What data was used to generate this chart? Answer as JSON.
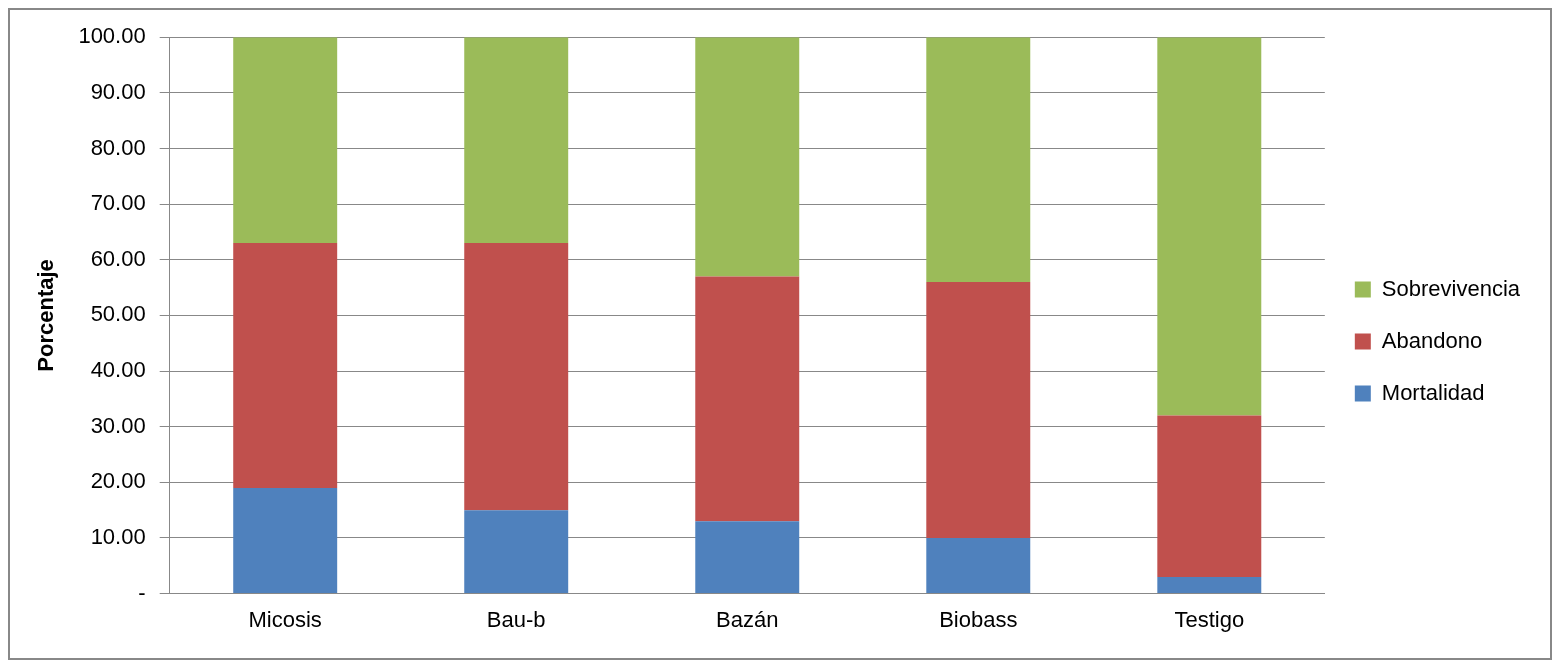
{
  "chart_data": {
    "type": "bar",
    "stacked": true,
    "ylabel": "Porcentaje",
    "categories": [
      "Micosis",
      "Bau-b",
      "Bazán",
      "Biobass",
      "Testigo"
    ],
    "series": [
      {
        "name": "Mortalidad",
        "color": "#4f81bd",
        "values": [
          19,
          15,
          13,
          10,
          3
        ]
      },
      {
        "name": "Abandono",
        "color": "#c0504d",
        "values": [
          44,
          48,
          44,
          46,
          29
        ]
      },
      {
        "name": "Sobrevivencia",
        "color": "#9bbb59",
        "values": [
          37,
          37,
          43,
          44,
          68
        ]
      }
    ],
    "ylim": [
      0,
      100
    ],
    "yticks": [
      {
        "value": 0,
        "label": "-"
      },
      {
        "value": 10,
        "label": "10.00"
      },
      {
        "value": 20,
        "label": "20.00"
      },
      {
        "value": 30,
        "label": "30.00"
      },
      {
        "value": 40,
        "label": "40.00"
      },
      {
        "value": 50,
        "label": "50.00"
      },
      {
        "value": 60,
        "label": "60.00"
      },
      {
        "value": 70,
        "label": "70.00"
      },
      {
        "value": 80,
        "label": "80.00"
      },
      {
        "value": 90,
        "label": "90.00"
      },
      {
        "value": 100,
        "label": "100.00"
      }
    ],
    "grid": "y",
    "legend": "right"
  }
}
